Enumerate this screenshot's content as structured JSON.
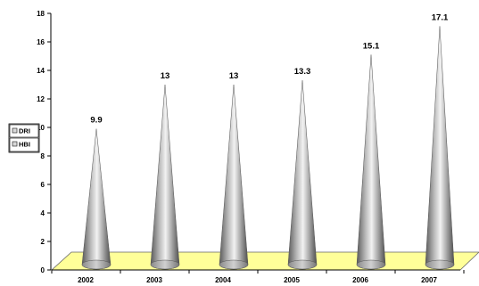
{
  "chart_data": {
    "type": "bar",
    "shape": "cone",
    "three_d": true,
    "categories": [
      "2002",
      "2003",
      "2004",
      "2005",
      "2006",
      "2007"
    ],
    "series": [
      {
        "values": [
          9.9,
          13,
          13,
          13.3,
          15.1,
          17.1
        ]
      }
    ],
    "data_labels": [
      "9.9",
      "13",
      "13",
      "13.3",
      "15.1",
      "17.1"
    ],
    "y_ticks": [
      "0",
      "2",
      "4",
      "6",
      "8",
      "10",
      "12",
      "14",
      "16",
      "18"
    ],
    "ylim": [
      0,
      18
    ],
    "title": "",
    "xlabel": "",
    "ylabel": "",
    "grid": false,
    "legend": {
      "placement": "left",
      "entries": [
        "DRI",
        "HBI"
      ]
    },
    "colors": {
      "floor": "#ffff99",
      "cone": "#9a9a9a",
      "cone_highlight": "#f2f2f2",
      "axis": "#000000"
    }
  }
}
